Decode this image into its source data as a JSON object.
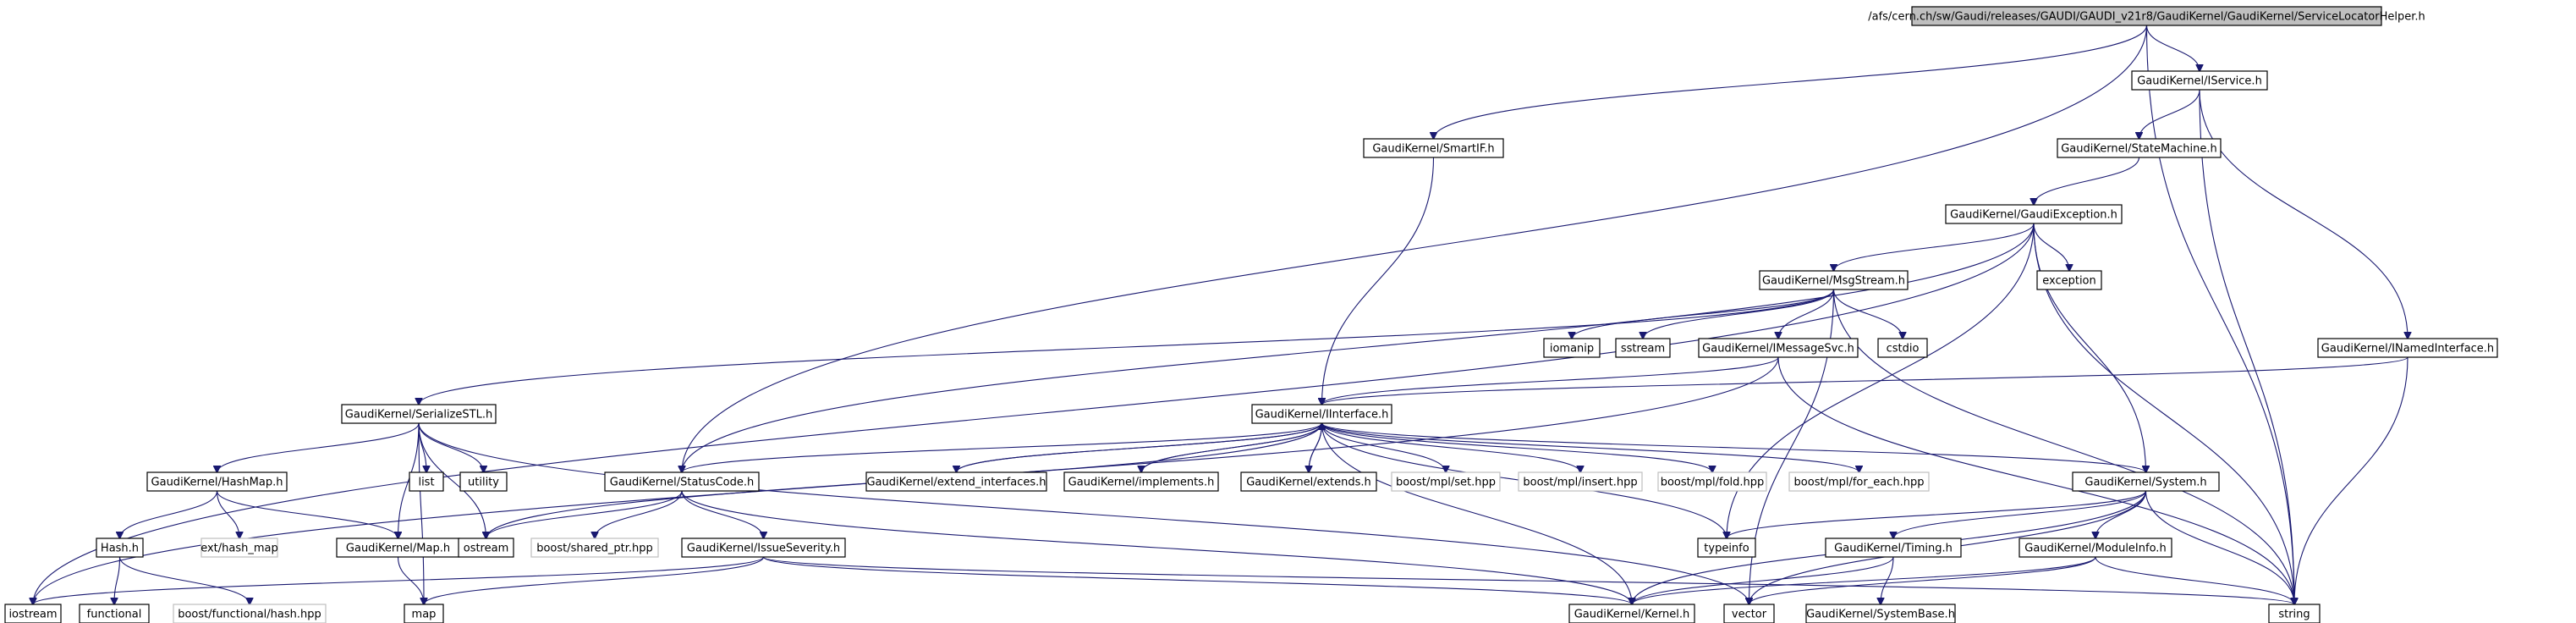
{
  "diagram": {
    "colors": {
      "edge": "#191970",
      "root_fill": "#bfbfbf",
      "node_border": "#000000",
      "external_border": "#bfbfbf"
    },
    "nodes": [
      {
        "id": "root",
        "label": "/afs/cern.ch/sw/Gaudi/releases/GAUDI/GAUDI_v21r8/GaudiKernel/GaudiKernel/ServiceLocatorHelper.h",
        "kind": "root"
      },
      {
        "id": "iservice",
        "label": "GaudiKernel/IService.h",
        "kind": "doc"
      },
      {
        "id": "smartif",
        "label": "GaudiKernel/SmartIF.h",
        "kind": "doc"
      },
      {
        "id": "statemachine",
        "label": "GaudiKernel/StateMachine.h",
        "kind": "doc"
      },
      {
        "id": "gaudiexception",
        "label": "GaudiKernel/GaudiException.h",
        "kind": "doc"
      },
      {
        "id": "msgstream",
        "label": "GaudiKernel/MsgStream.h",
        "kind": "doc"
      },
      {
        "id": "exception",
        "label": "exception",
        "kind": "doc"
      },
      {
        "id": "iomanip",
        "label": "iomanip",
        "kind": "doc"
      },
      {
        "id": "sstream",
        "label": "sstream",
        "kind": "doc"
      },
      {
        "id": "imessagesvc",
        "label": "GaudiKernel/IMessageSvc.h",
        "kind": "doc"
      },
      {
        "id": "cstdio",
        "label": "cstdio",
        "kind": "doc"
      },
      {
        "id": "inamedinterface",
        "label": "GaudiKernel/INamedInterface.h",
        "kind": "doc"
      },
      {
        "id": "serializestl",
        "label": "GaudiKernel/SerializeSTL.h",
        "kind": "doc"
      },
      {
        "id": "iinterface",
        "label": "GaudiKernel/IInterface.h",
        "kind": "doc"
      },
      {
        "id": "hashmap",
        "label": "GaudiKernel/HashMap.h",
        "kind": "doc"
      },
      {
        "id": "list",
        "label": "list",
        "kind": "doc"
      },
      {
        "id": "utility",
        "label": "utility",
        "kind": "doc"
      },
      {
        "id": "statuscode",
        "label": "GaudiKernel/StatusCode.h",
        "kind": "doc"
      },
      {
        "id": "extend_interfaces",
        "label": "GaudiKernel/extend_interfaces.h",
        "kind": "doc"
      },
      {
        "id": "implements",
        "label": "GaudiKernel/implements.h",
        "kind": "doc"
      },
      {
        "id": "extends",
        "label": "GaudiKernel/extends.h",
        "kind": "doc"
      },
      {
        "id": "mplset",
        "label": "boost/mpl/set.hpp",
        "kind": "ext"
      },
      {
        "id": "mplinsert",
        "label": "boost/mpl/insert.hpp",
        "kind": "ext"
      },
      {
        "id": "mplfold",
        "label": "boost/mpl/fold.hpp",
        "kind": "ext"
      },
      {
        "id": "mplforeach",
        "label": "boost/mpl/for_each.hpp",
        "kind": "ext"
      },
      {
        "id": "system",
        "label": "GaudiKernel/System.h",
        "kind": "doc"
      },
      {
        "id": "hash",
        "label": "Hash.h",
        "kind": "doc"
      },
      {
        "id": "exthashmap",
        "label": "ext/hash_map",
        "kind": "ext"
      },
      {
        "id": "map_h",
        "label": "GaudiKernel/Map.h",
        "kind": "doc"
      },
      {
        "id": "ostream",
        "label": "ostream",
        "kind": "doc"
      },
      {
        "id": "sharedptr",
        "label": "boost/shared_ptr.hpp",
        "kind": "ext"
      },
      {
        "id": "issueseverity",
        "label": "GaudiKernel/IssueSeverity.h",
        "kind": "doc"
      },
      {
        "id": "typeinfo",
        "label": "typeinfo",
        "kind": "doc"
      },
      {
        "id": "timing",
        "label": "GaudiKernel/Timing.h",
        "kind": "doc"
      },
      {
        "id": "moduleinfo",
        "label": "GaudiKernel/ModuleInfo.h",
        "kind": "doc"
      },
      {
        "id": "iostream",
        "label": "iostream",
        "kind": "doc"
      },
      {
        "id": "functional",
        "label": "functional",
        "kind": "doc"
      },
      {
        "id": "boosthash",
        "label": "boost/functional/hash.hpp",
        "kind": "ext"
      },
      {
        "id": "map",
        "label": "map",
        "kind": "doc"
      },
      {
        "id": "kernel",
        "label": "GaudiKernel/Kernel.h",
        "kind": "doc"
      },
      {
        "id": "vector",
        "label": "vector",
        "kind": "doc"
      },
      {
        "id": "systembase",
        "label": "GaudiKernel/SystemBase.h",
        "kind": "doc"
      },
      {
        "id": "string",
        "label": "string",
        "kind": "doc"
      }
    ],
    "edges": [
      [
        "root",
        "iservice"
      ],
      [
        "root",
        "smartif"
      ],
      [
        "root",
        "statuscode"
      ],
      [
        "root",
        "string"
      ],
      [
        "iservice",
        "statemachine"
      ],
      [
        "iservice",
        "inamedinterface"
      ],
      [
        "iservice",
        "string"
      ],
      [
        "smartif",
        "iinterface"
      ],
      [
        "statemachine",
        "gaudiexception"
      ],
      [
        "gaudiexception",
        "msgstream"
      ],
      [
        "gaudiexception",
        "exception"
      ],
      [
        "gaudiexception",
        "statuscode"
      ],
      [
        "gaudiexception",
        "system"
      ],
      [
        "gaudiexception",
        "string"
      ],
      [
        "gaudiexception",
        "iostream"
      ],
      [
        "gaudiexception",
        "typeinfo"
      ],
      [
        "msgstream",
        "iomanip"
      ],
      [
        "msgstream",
        "sstream"
      ],
      [
        "msgstream",
        "imessagesvc"
      ],
      [
        "msgstream",
        "cstdio"
      ],
      [
        "msgstream",
        "serializestl"
      ],
      [
        "msgstream",
        "string"
      ],
      [
        "msgstream",
        "vector"
      ],
      [
        "imessagesvc",
        "iinterface"
      ],
      [
        "imessagesvc",
        "iostream"
      ],
      [
        "imessagesvc",
        "string"
      ],
      [
        "inamedinterface",
        "iinterface"
      ],
      [
        "inamedinterface",
        "string"
      ],
      [
        "serializestl",
        "hashmap"
      ],
      [
        "serializestl",
        "list"
      ],
      [
        "serializestl",
        "utility"
      ],
      [
        "serializestl",
        "map_h"
      ],
      [
        "serializestl",
        "ostream"
      ],
      [
        "serializestl",
        "map"
      ],
      [
        "serializestl",
        "vector"
      ],
      [
        "iinterface",
        "statuscode"
      ],
      [
        "iinterface",
        "extend_interfaces"
      ],
      [
        "iinterface",
        "implements"
      ],
      [
        "iinterface",
        "extends"
      ],
      [
        "iinterface",
        "mplset"
      ],
      [
        "iinterface",
        "mplinsert"
      ],
      [
        "iinterface",
        "mplfold"
      ],
      [
        "iinterface",
        "mplforeach"
      ],
      [
        "iinterface",
        "system"
      ],
      [
        "iinterface",
        "ostream"
      ],
      [
        "iinterface",
        "kernel"
      ],
      [
        "iinterface",
        "typeinfo"
      ],
      [
        "extend_interfaces",
        "iinterface"
      ],
      [
        "implements",
        "iinterface"
      ],
      [
        "extends",
        "iinterface"
      ],
      [
        "hashmap",
        "hash"
      ],
      [
        "hashmap",
        "exthashmap"
      ],
      [
        "hashmap",
        "map_h"
      ],
      [
        "hash",
        "functional"
      ],
      [
        "hash",
        "boosthash"
      ],
      [
        "map_h",
        "map"
      ],
      [
        "statuscode",
        "ostream"
      ],
      [
        "statuscode",
        "sharedptr"
      ],
      [
        "statuscode",
        "issueseverity"
      ],
      [
        "statuscode",
        "kernel"
      ],
      [
        "issueseverity",
        "iostream"
      ],
      [
        "issueseverity",
        "map"
      ],
      [
        "issueseverity",
        "kernel"
      ],
      [
        "issueseverity",
        "string"
      ],
      [
        "system",
        "typeinfo"
      ],
      [
        "system",
        "timing"
      ],
      [
        "system",
        "moduleinfo"
      ],
      [
        "system",
        "kernel"
      ],
      [
        "system",
        "string"
      ],
      [
        "system",
        "vector"
      ],
      [
        "timing",
        "kernel"
      ],
      [
        "timing",
        "systembase"
      ],
      [
        "moduleinfo",
        "kernel"
      ],
      [
        "moduleinfo",
        "string"
      ],
      [
        "moduleinfo",
        "vector"
      ]
    ]
  }
}
